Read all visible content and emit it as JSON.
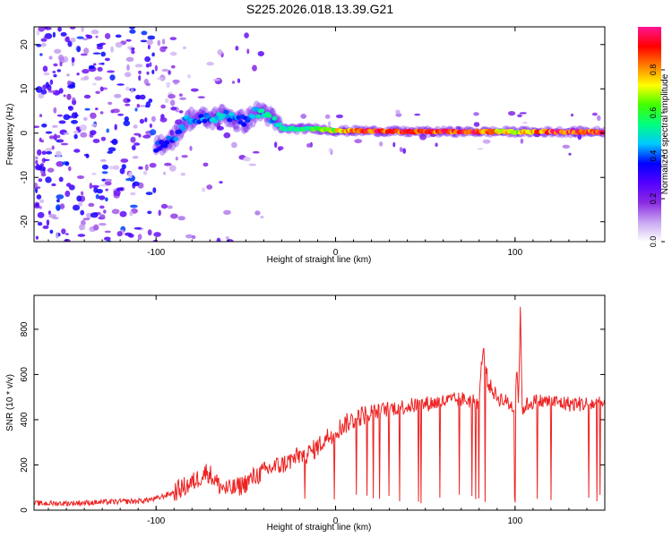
{
  "figure_title": "S225.2026.018.13.39.G21",
  "chart_data": [
    {
      "type": "heatmap",
      "title": "S225.2026.018.13.39.G21",
      "xlabel": "Height of straight line (km)",
      "ylabel": "Frequency (Hz)",
      "xlim": [
        -168,
        150
      ],
      "ylim": [
        -24.5,
        24
      ],
      "x_ticks": [
        -100,
        0,
        100
      ],
      "y_ticks": [
        -20,
        -10,
        0,
        10,
        20
      ],
      "colorbar": {
        "label": "Normalized spectral amplitude",
        "range": [
          0,
          1
        ],
        "ticks": [
          0.0,
          0.2,
          0.4,
          0.6,
          0.8
        ],
        "tick_labels": [
          "0.0",
          "0.2",
          "0.4",
          "0.6",
          "0.8"
        ],
        "colormap": [
          "#ffffff",
          "#c8a6f2",
          "#8a2be2",
          "#5500ff",
          "#0000ff",
          "#00c8ff",
          "#00ff80",
          "#40ff00",
          "#ffff00",
          "#ff8000",
          "#ff0000",
          "#ff1493"
        ]
      },
      "ridge": {
        "x": [
          -100,
          -90,
          -85,
          -80,
          -75,
          -70,
          -65,
          -60,
          -55,
          -50,
          -45,
          -40,
          -35,
          -30,
          -20,
          -10,
          0,
          20,
          40,
          60,
          80,
          100,
          120,
          150
        ],
        "y": [
          -3,
          -1,
          2,
          3.5,
          3.5,
          3,
          4,
          4,
          3,
          2.5,
          4.5,
          5,
          3,
          1,
          1,
          1,
          0.5,
          0.5,
          0.3,
          0.3,
          0.3,
          0.3,
          0.3,
          0.3
        ],
        "amplitude": [
          0.4,
          0.4,
          0.5,
          0.45,
          0.45,
          0.45,
          0.5,
          0.45,
          0.45,
          0.4,
          0.5,
          0.55,
          0.5,
          0.55,
          0.6,
          0.65,
          0.75,
          0.95,
          0.95,
          0.95,
          0.95,
          0.75,
          0.95,
          0.95
        ]
      }
    },
    {
      "type": "line",
      "xlabel": "Height of straight line (km)",
      "ylabel": "SNR (10 * v/v)",
      "xlim": [
        -168,
        150
      ],
      "ylim": [
        0,
        950
      ],
      "x_ticks": [
        -100,
        0,
        100
      ],
      "y_ticks": [
        0,
        200,
        400,
        600,
        800
      ],
      "color": "#ee2222",
      "series": [
        {
          "name": "SNR",
          "x": [
            -168,
            -150,
            -130,
            -110,
            -100,
            -90,
            -85,
            -80,
            -75,
            -72,
            -70,
            -68,
            -65,
            -60,
            -55,
            -50,
            -45,
            -40,
            -35,
            -30,
            -25,
            -20,
            -15,
            -10,
            -5,
            0,
            5,
            10,
            15,
            20,
            25,
            30,
            40,
            50,
            60,
            70,
            80,
            82,
            85,
            90,
            95,
            100,
            101,
            102,
            103,
            104,
            105,
            110,
            120,
            130,
            140,
            150
          ],
          "y": [
            30,
            30,
            35,
            40,
            50,
            80,
            100,
            120,
            150,
            170,
            160,
            140,
            110,
            90,
            100,
            120,
            150,
            170,
            190,
            200,
            220,
            240,
            250,
            280,
            320,
            350,
            380,
            400,
            420,
            430,
            440,
            450,
            460,
            470,
            480,
            490,
            480,
            720,
            560,
            500,
            480,
            450,
            650,
            470,
            930,
            400,
            460,
            480,
            480,
            470,
            470,
            470
          ]
        }
      ]
    }
  ]
}
